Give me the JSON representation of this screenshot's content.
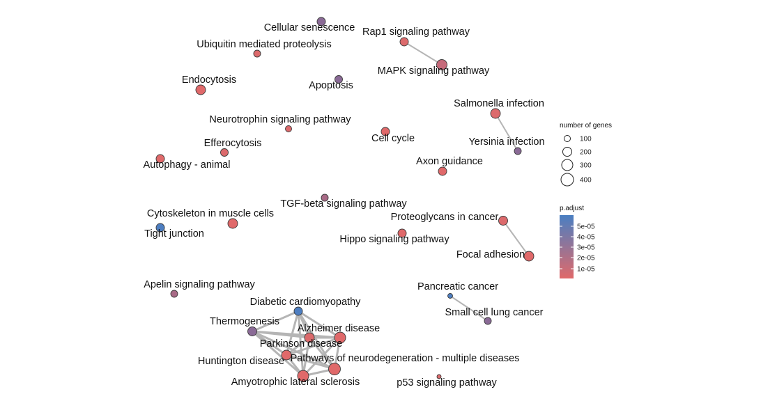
{
  "network": {
    "nodes": [
      {
        "id": "cellular-senescence",
        "label": "Cellular senescence",
        "color": "#8a6a96"
      },
      {
        "id": "ubiquitin",
        "label": "Ubiquitin mediated proteolysis",
        "color": "#dc6a6c"
      },
      {
        "id": "rap1",
        "label": "Rap1 signaling pathway",
        "color": "#dc6a6c"
      },
      {
        "id": "mapk",
        "label": "MAPK signaling pathway",
        "color": "#c66a7a"
      },
      {
        "id": "endocytosis",
        "label": "Endocytosis",
        "color": "#e0696a"
      },
      {
        "id": "apoptosis",
        "label": "Apoptosis",
        "color": "#8a6a96"
      },
      {
        "id": "salmonella",
        "label": "Salmonella infection",
        "color": "#dc6a6c"
      },
      {
        "id": "neurotrophin",
        "label": "Neurotrophin signaling pathway",
        "color": "#dc6a6c"
      },
      {
        "id": "cell-cycle",
        "label": "Cell cycle",
        "color": "#e0696a"
      },
      {
        "id": "yersinia",
        "label": "Yersinia infection",
        "color": "#8a6a96"
      },
      {
        "id": "efferocytosis",
        "label": "Efferocytosis",
        "color": "#dc6a6c"
      },
      {
        "id": "autophagy",
        "label": "Autophagy - animal",
        "color": "#e0696a"
      },
      {
        "id": "axon-guidance",
        "label": "Axon guidance",
        "color": "#e0696a"
      },
      {
        "id": "tgf-beta",
        "label": "TGF-beta signaling pathway",
        "color": "#a86a86"
      },
      {
        "id": "cytoskeleton",
        "label": "Cytoskeleton in muscle cells",
        "color": "#e0696a"
      },
      {
        "id": "tight-junction",
        "label": "Tight junction",
        "color": "#4d7ec1"
      },
      {
        "id": "proteoglycans",
        "label": "Proteoglycans in cancer",
        "color": "#dc6a6c"
      },
      {
        "id": "hippo",
        "label": "Hippo signaling pathway",
        "color": "#e0696a"
      },
      {
        "id": "focal-adhesion",
        "label": "Focal adhesion",
        "color": "#e0696a"
      },
      {
        "id": "apelin",
        "label": "Apelin signaling pathway",
        "color": "#a86a86"
      },
      {
        "id": "pancreatic-cancer",
        "label": "Pancreatic cancer",
        "color": "#4d7ec1"
      },
      {
        "id": "diabetic-cardiomyopathy",
        "label": "Diabetic cardiomyopathy",
        "color": "#4d7ec1"
      },
      {
        "id": "small-cell-lung-cancer",
        "label": "Small cell lung cancer",
        "color": "#8a6a96"
      },
      {
        "id": "thermogenesis",
        "label": "Thermogenesis",
        "color": "#8a6a96"
      },
      {
        "id": "alzheimer",
        "label": "Alzheimer disease",
        "color": "#e0696a"
      },
      {
        "id": "parkinson",
        "label": "Parkinson disease",
        "color": "#dc6a6c"
      },
      {
        "id": "huntington",
        "label": "Huntington disease",
        "color": "#e0696a"
      },
      {
        "id": "neurodegeneration",
        "label": "Pathways of neurodegeneration - multiple diseases",
        "color": "#e0696a"
      },
      {
        "id": "als",
        "label": "Amyotrophic lateral sclerosis",
        "color": "#e0696a"
      },
      {
        "id": "p53",
        "label": "p53 signaling pathway",
        "color": "#dc6a6c"
      }
    ],
    "edges": [
      [
        "rap1",
        "mapk"
      ],
      [
        "salmonella",
        "yersinia"
      ],
      [
        "proteoglycans",
        "focal-adhesion"
      ],
      [
        "pancreatic-cancer",
        "small-cell-lung-cancer"
      ],
      [
        "diabetic-cardiomyopathy",
        "thermogenesis"
      ],
      [
        "diabetic-cardiomyopathy",
        "alzheimer"
      ],
      [
        "diabetic-cardiomyopathy",
        "parkinson"
      ],
      [
        "diabetic-cardiomyopathy",
        "neurodegeneration"
      ],
      [
        "diabetic-cardiomyopathy",
        "als"
      ],
      [
        "diabetic-cardiomyopathy",
        "huntington"
      ],
      [
        "thermogenesis",
        "alzheimer"
      ],
      [
        "thermogenesis",
        "parkinson"
      ],
      [
        "thermogenesis",
        "huntington"
      ],
      [
        "thermogenesis",
        "neurodegeneration"
      ],
      [
        "thermogenesis",
        "als"
      ],
      [
        "alzheimer",
        "parkinson"
      ],
      [
        "alzheimer",
        "huntington"
      ],
      [
        "alzheimer",
        "neurodegeneration"
      ],
      [
        "alzheimer",
        "als"
      ],
      [
        "parkinson",
        "huntington"
      ],
      [
        "parkinson",
        "neurodegeneration"
      ],
      [
        "parkinson",
        "als"
      ],
      [
        "huntington",
        "neurodegeneration"
      ],
      [
        "huntington",
        "als"
      ],
      [
        "neurodegeneration",
        "als"
      ]
    ]
  },
  "legend": {
    "size": {
      "title": "number of genes",
      "entries": [
        {
          "label": "100",
          "value": 100
        },
        {
          "label": "200",
          "value": 200
        },
        {
          "label": "300",
          "value": 300
        },
        {
          "label": "400",
          "value": 400
        }
      ]
    },
    "color": {
      "title": "p.adjust",
      "ticks": [
        "5e-05",
        "4e-05",
        "3e-05",
        "2e-05",
        "1e-05"
      ],
      "gradient": [
        "#4a7fc2",
        "#e0696a"
      ]
    }
  }
}
